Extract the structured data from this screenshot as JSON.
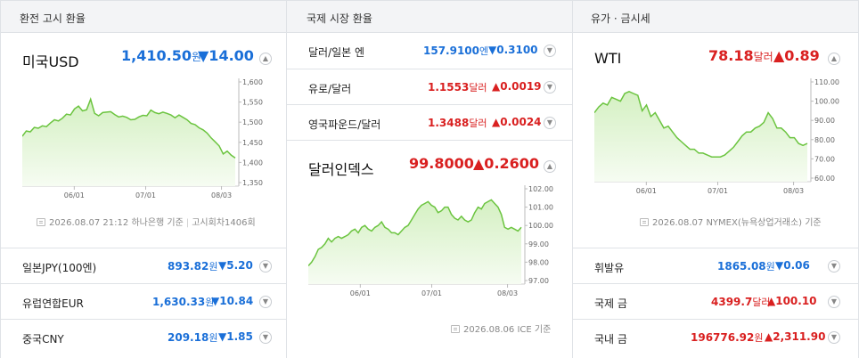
{
  "colors": {
    "up": "#d92020",
    "down": "#1a6fd8",
    "line": "#6bc43f",
    "fill": "#e7f6dd"
  },
  "exchange": {
    "section_title": "환전 고시 환율",
    "main": {
      "name": "미국USD",
      "value": "1,410.50",
      "unit": "원",
      "change": "▼14.00",
      "direction": "down",
      "toggle": "⌃"
    },
    "chart": {
      "y_ticks": [
        "1,600",
        "1,550",
        "1,500",
        "1,450",
        "1,400",
        "1,350"
      ],
      "x_ticks": [
        "06/01",
        "07/01",
        "08/03"
      ]
    },
    "footer": {
      "datetime": "2026.08.07 21:12",
      "source": "하나은행 기준",
      "round": "고시회차1406회"
    },
    "rows": [
      {
        "name": "일본JPY(100엔)",
        "value": "893.82",
        "unit": "원",
        "change": "▼5.20",
        "direction": "down"
      },
      {
        "name": "유럽연합EUR",
        "value": "1,630.33",
        "unit": "원",
        "change": "▼10.84",
        "direction": "down"
      },
      {
        "name": "중국CNY",
        "value": "209.18",
        "unit": "원",
        "change": "▼1.85",
        "direction": "down"
      }
    ]
  },
  "international": {
    "section_title": "국제 시장 환율",
    "rows": [
      {
        "name": "달러/일본 엔",
        "value": "157.9100",
        "unit": "엔",
        "change": "▼0.3100",
        "direction": "down"
      },
      {
        "name": "유로/달러",
        "value": "1.1553",
        "unit": "달러",
        "change": "▲0.0019",
        "direction": "up"
      },
      {
        "name": "영국파운드/달러",
        "value": "1.3488",
        "unit": "달러",
        "change": "▲0.0024",
        "direction": "up"
      }
    ],
    "main": {
      "name": "달러인덱스",
      "value": "99.8000",
      "change": "▲0.2600",
      "direction": "up"
    },
    "chart": {
      "y_ticks": [
        "102.00",
        "101.00",
        "100.00",
        "99.00",
        "98.00",
        "97.00"
      ],
      "x_ticks": [
        "06/01",
        "07/01",
        "08/03"
      ]
    },
    "footer": {
      "datetime": "2026.08.06",
      "source": "ICE 기준"
    }
  },
  "commodity": {
    "section_title": "유가 · 금시세",
    "main": {
      "name": "WTI",
      "value": "78.18",
      "unit": "달러",
      "change": "▲0.89",
      "direction": "up"
    },
    "chart": {
      "y_ticks": [
        "110.00",
        "100.00",
        "90.00",
        "80.00",
        "70.00",
        "60.00"
      ],
      "x_ticks": [
        "06/01",
        "07/01",
        "08/03"
      ]
    },
    "footer": {
      "datetime": "2026.08.07",
      "source": "NYMEX(뉴욕상업거래소) 기준"
    },
    "rows": [
      {
        "name": "휘발유",
        "value": "1865.08",
        "unit": "원",
        "change": "▼0.06",
        "direction": "down"
      },
      {
        "name": "국제 금",
        "value": "4399.7",
        "unit": "달러",
        "change": "▲100.10",
        "direction": "up"
      },
      {
        "name": "국내 금",
        "value": "196776.92",
        "unit": "원",
        "change": "▲2,311.90",
        "direction": "up"
      }
    ]
  },
  "chart_data": [
    {
      "type": "area",
      "ylim": [
        1350,
        1600
      ],
      "series": [
        {
          "values": [
            1465,
            1478,
            1476,
            1487,
            1485,
            1491,
            1489,
            1498,
            1506,
            1503,
            1510,
            1520,
            1518,
            1533,
            1540,
            1528,
            1531,
            1557,
            1522,
            1516,
            1524,
            1525,
            1526,
            1519,
            1513,
            1515,
            1512,
            1506,
            1507,
            1513,
            1517,
            1516,
            1530,
            1524,
            1521,
            1525,
            1522,
            1518,
            1511,
            1518,
            1512,
            1506,
            1497,
            1494,
            1486,
            1481,
            1473,
            1461,
            1451,
            1441,
            1421,
            1428,
            1418,
            1411
          ]
        }
      ]
    },
    {
      "type": "area",
      "ylim": [
        97,
        102
      ],
      "series": [
        {
          "values": [
            97.8,
            98.0,
            98.3,
            98.7,
            98.8,
            99.0,
            99.3,
            99.1,
            99.3,
            99.4,
            99.3,
            99.4,
            99.5,
            99.7,
            99.8,
            99.6,
            99.9,
            100.0,
            99.8,
            99.7,
            99.9,
            100.0,
            100.2,
            99.9,
            99.8,
            99.6,
            99.6,
            99.5,
            99.7,
            99.9,
            100.0,
            100.3,
            100.6,
            100.9,
            101.1,
            101.2,
            101.3,
            101.1,
            101.0,
            100.7,
            100.8,
            101.0,
            101.0,
            100.6,
            100.4,
            100.3,
            100.5,
            100.3,
            100.2,
            100.3,
            100.7,
            101.0,
            100.9,
            101.2,
            101.3,
            101.4,
            101.2,
            101.0,
            100.6,
            99.9,
            99.8,
            99.9,
            99.8,
            99.7,
            99.9
          ]
        }
      ]
    },
    {
      "type": "area",
      "ylim": [
        60,
        110
      ],
      "series": [
        {
          "values": [
            94,
            97,
            99,
            98,
            102,
            101,
            100,
            104,
            105,
            104,
            103,
            95,
            98,
            92,
            94,
            90,
            86,
            87,
            84,
            81,
            79,
            77,
            75,
            75,
            73,
            73,
            72,
            71,
            71,
            71,
            72,
            74,
            76,
            79,
            82,
            84,
            84,
            86,
            87,
            89,
            94,
            91,
            86,
            86,
            84,
            81,
            81,
            78,
            77,
            78
          ]
        }
      ]
    }
  ]
}
